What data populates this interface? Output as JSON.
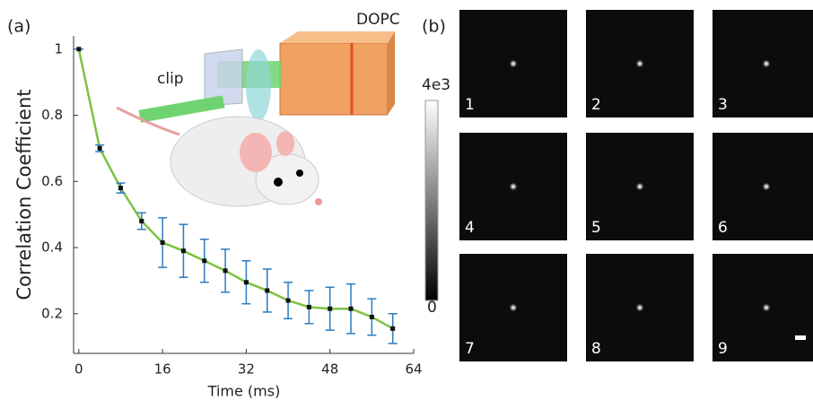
{
  "chart_data": {
    "type": "line",
    "panel_label": "(a)",
    "x_label": "Time (ms)",
    "y_label": "Correlation Coefficient",
    "x": [
      0,
      4,
      8,
      12,
      16,
      20,
      24,
      28,
      32,
      36,
      40,
      44,
      48,
      52,
      56,
      60
    ],
    "series": [
      {
        "color": "#7dc242",
        "error_color": "#2a7bc0",
        "values": [
          1.0,
          0.7,
          0.58,
          0.48,
          0.415,
          0.39,
          0.36,
          0.33,
          0.295,
          0.27,
          0.24,
          0.22,
          0.215,
          0.215,
          0.19,
          0.155
        ],
        "errors": [
          0,
          0.01,
          0.015,
          0.025,
          0.075,
          0.08,
          0.065,
          0.065,
          0.065,
          0.065,
          0.055,
          0.05,
          0.065,
          0.075,
          0.055,
          0.045
        ]
      }
    ],
    "xlim": [
      -1,
      64
    ],
    "ylim": [
      0.08,
      1.04
    ],
    "xticks": [
      0,
      16,
      32,
      48,
      64
    ],
    "yticks": [
      0.2,
      0.4,
      0.6,
      0.8,
      1
    ],
    "annotations": [
      "DOPC",
      "clip"
    ]
  },
  "panel_b": {
    "panel_label": "(b)",
    "colorbar_max": "4e3",
    "colorbar_min": "0",
    "frames": [
      "1",
      "2",
      "3",
      "4",
      "5",
      "6",
      "7",
      "8",
      "9"
    ]
  }
}
